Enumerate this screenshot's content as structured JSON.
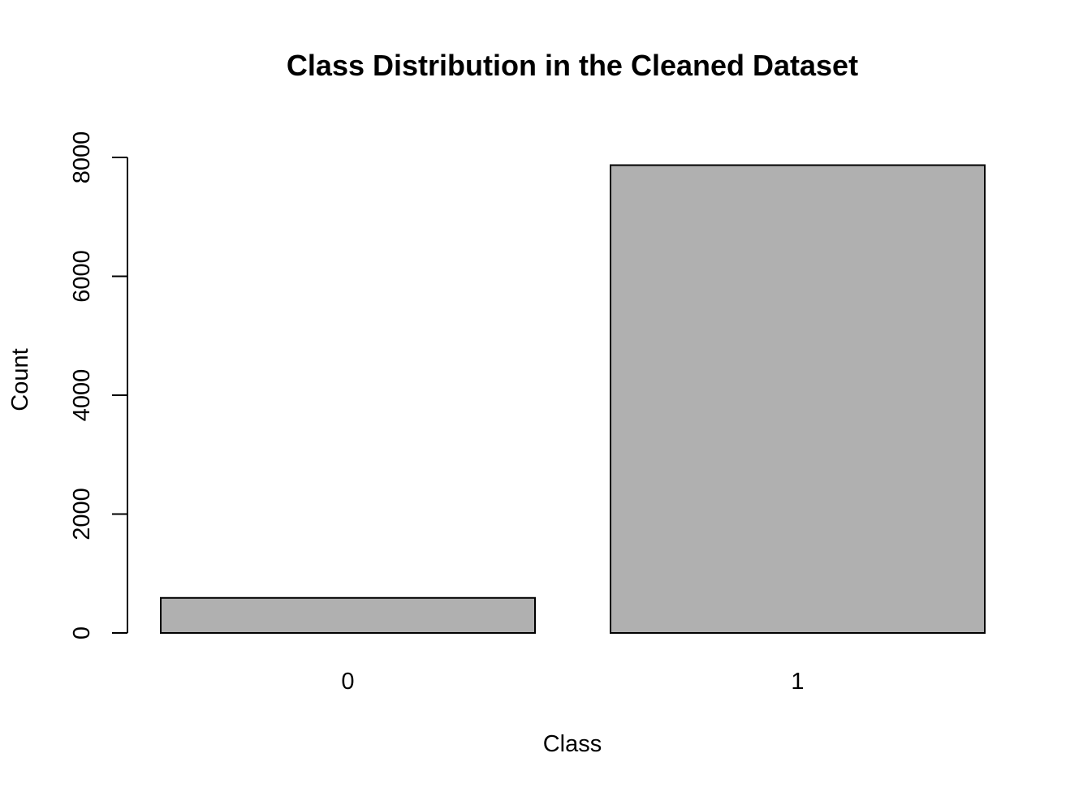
{
  "chart_data": {
    "type": "bar",
    "title": "Class Distribution in the Cleaned Dataset",
    "xlabel": "Class",
    "ylabel": "Count",
    "categories": [
      "0",
      "1"
    ],
    "values": [
      590,
      7870
    ],
    "ylim": [
      0,
      8000
    ],
    "yticks": [
      0,
      2000,
      4000,
      6000,
      8000
    ],
    "ytick_labels": [
      "0",
      "2000",
      "4000",
      "6000",
      "8000"
    ],
    "grid": false,
    "legend": "none",
    "bar_color": "#b0b0b0",
    "border_color": "#000000"
  }
}
